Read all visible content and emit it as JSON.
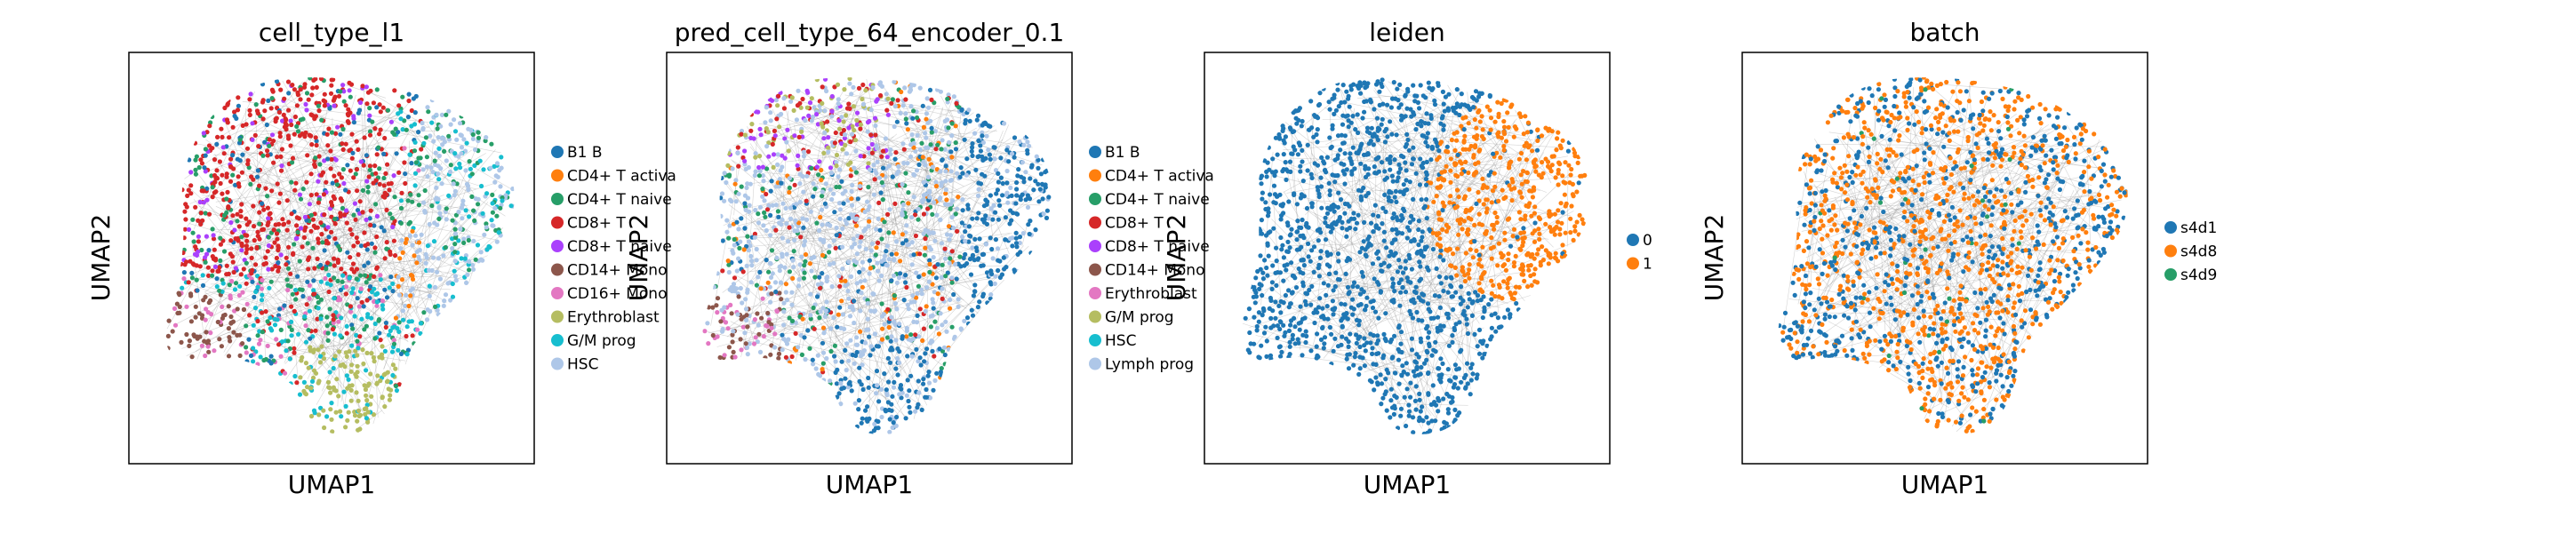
{
  "chart_data": [
    {
      "type": "scatter",
      "title": "cell_type_l1",
      "xlabel": "UMAP1",
      "ylabel": "UMAP2",
      "legend_position": "right",
      "grid": false,
      "categories": [
        {
          "label": "B1 B",
          "color": "#1f77b4"
        },
        {
          "label": "CD4+ T activa",
          "color": "#ff7f0e"
        },
        {
          "label": "CD4+ T naive",
          "color": "#279e68"
        },
        {
          "label": "CD8+ T",
          "color": "#d62728"
        },
        {
          "label": "CD8+ T naive",
          "color": "#aa40fc"
        },
        {
          "label": "CD14+ Mono",
          "color": "#8c564b"
        },
        {
          "label": "CD16+ Mono",
          "color": "#e377c2"
        },
        {
          "label": "Erythroblast",
          "color": "#b5bd61"
        },
        {
          "label": "G/M prog",
          "color": "#17becf"
        },
        {
          "label": "HSC",
          "color": "#aec7e8"
        }
      ]
    },
    {
      "type": "scatter",
      "title": "pred_cell_type_64_encoder_0.1",
      "xlabel": "UMAP1",
      "ylabel": "UMAP2",
      "legend_position": "right",
      "grid": false,
      "categories": [
        {
          "label": "B1 B",
          "color": "#1f77b4"
        },
        {
          "label": "CD4+ T activa",
          "color": "#ff7f0e"
        },
        {
          "label": "CD4+ T naive",
          "color": "#279e68"
        },
        {
          "label": "CD8+ T",
          "color": "#d62728"
        },
        {
          "label": "CD8+ T naive",
          "color": "#aa40fc"
        },
        {
          "label": "CD14+ Mono",
          "color": "#8c564b"
        },
        {
          "label": "Erythroblast",
          "color": "#e377c2"
        },
        {
          "label": "G/M prog",
          "color": "#b5bd61"
        },
        {
          "label": "HSC",
          "color": "#17becf"
        },
        {
          "label": "Lymph prog",
          "color": "#aec7e8"
        }
      ]
    },
    {
      "type": "scatter",
      "title": "leiden",
      "xlabel": "UMAP1",
      "ylabel": "UMAP2",
      "legend_position": "right",
      "grid": false,
      "categories": [
        {
          "label": "0",
          "color": "#1f77b4"
        },
        {
          "label": "1",
          "color": "#ff7f0e"
        }
      ]
    },
    {
      "type": "scatter",
      "title": "batch",
      "xlabel": "UMAP1",
      "ylabel": "UMAP2",
      "legend_position": "right",
      "grid": false,
      "categories": [
        {
          "label": "s4d1",
          "color": "#1f77b4"
        },
        {
          "label": "s4d8",
          "color": "#ff7f0e"
        },
        {
          "label": "s4d9",
          "color": "#279e68"
        }
      ]
    }
  ],
  "colors": {
    "edges": "#888888",
    "axes_frame": "#000000"
  }
}
